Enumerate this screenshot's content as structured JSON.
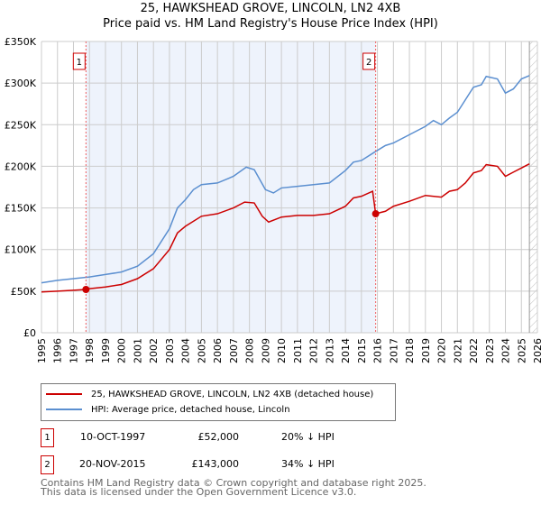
{
  "title": "25, HAWKSHEAD GROVE, LINCOLN, LN2 4XB",
  "subtitle": "Price paid vs. HM Land Registry's House Price Index (HPI)",
  "chart_data": {
    "type": "line",
    "title": "25, HAWKSHEAD GROVE, LINCOLN, LN2 4XB",
    "subtitle": "Price paid vs. HM Land Registry's House Price Index (HPI)",
    "xlim": [
      1995,
      2026
    ],
    "ylim": [
      0,
      350000
    ],
    "yticks": [
      {
        "v": 0,
        "label": "£0"
      },
      {
        "v": 50000,
        "label": "£50K"
      },
      {
        "v": 100000,
        "label": "£100K"
      },
      {
        "v": 150000,
        "label": "£150K"
      },
      {
        "v": 200000,
        "label": "£200K"
      },
      {
        "v": 250000,
        "label": "£250K"
      },
      {
        "v": 300000,
        "label": "£300K"
      },
      {
        "v": 350000,
        "label": "£350K"
      }
    ],
    "xticks": [
      "1995",
      "1996",
      "1997",
      "1998",
      "1999",
      "2000",
      "2001",
      "2002",
      "2003",
      "2004",
      "2005",
      "2006",
      "2007",
      "2008",
      "2009",
      "2010",
      "2011",
      "2012",
      "2013",
      "2014",
      "2015",
      "2016",
      "2017",
      "2018",
      "2019",
      "2020",
      "2021",
      "2022",
      "2023",
      "2024",
      "2025",
      "2026"
    ],
    "grid": true,
    "series": [
      {
        "name": "25, HAWKSHEAD GROVE, LINCOLN, LN2 4XB (detached house)",
        "color": "#cc0000",
        "x": [
          1995,
          1996,
          1997,
          1997.78,
          1998,
          1999,
          2000,
          2001,
          2002,
          2003,
          2003.5,
          2004,
          2005,
          2006,
          2007,
          2007.7,
          2008.3,
          2008.8,
          2009.2,
          2010,
          2011,
          2012,
          2013,
          2014,
          2014.5,
          2015,
          2015.7,
          2015.89,
          2016.5,
          2017,
          2018,
          2019,
          2020,
          2020.5,
          2021,
          2021.5,
          2022,
          2022.5,
          2022.8,
          2023.5,
          2024,
          2024.5,
          2025,
          2025.5
        ],
        "y": [
          49000,
          50000,
          51000,
          52000,
          53000,
          55000,
          58000,
          65000,
          77000,
          100000,
          120000,
          128000,
          140000,
          143000,
          150000,
          157000,
          156000,
          140000,
          133000,
          139000,
          141000,
          141000,
          143000,
          152000,
          162000,
          164000,
          170000,
          143000,
          146000,
          152000,
          158000,
          165000,
          163000,
          170000,
          172000,
          180000,
          192000,
          195000,
          202000,
          200000,
          188000,
          193000,
          198000,
          203000
        ]
      },
      {
        "name": "HPI: Average price, detached house, Lincoln",
        "color": "#5b8fd0",
        "x": [
          1995,
          1996,
          1997,
          1998,
          1999,
          2000,
          2001,
          2002,
          2003,
          2003.5,
          2004,
          2004.5,
          2005,
          2006,
          2007,
          2007.8,
          2008.3,
          2009,
          2009.5,
          2010,
          2011,
          2012,
          2013,
          2014,
          2014.5,
          2015,
          2015.9,
          2016.5,
          2017,
          2018,
          2019,
          2019.5,
          2020,
          2020.5,
          2021,
          2021.5,
          2022,
          2022.5,
          2022.8,
          2023.5,
          2024,
          2024.5,
          2025,
          2025.5
        ],
        "y": [
          60000,
          63000,
          65000,
          67000,
          70000,
          73000,
          80000,
          95000,
          125000,
          150000,
          160000,
          172000,
          178000,
          180000,
          188000,
          199000,
          196000,
          172000,
          168000,
          174000,
          176000,
          178000,
          180000,
          195000,
          205000,
          207000,
          218000,
          225000,
          228000,
          238000,
          248000,
          255000,
          250000,
          258000,
          265000,
          280000,
          295000,
          298000,
          308000,
          305000,
          288000,
          293000,
          305000,
          309000
        ]
      }
    ],
    "sales": [
      {
        "label": "1",
        "x": 1997.78,
        "y": 52000,
        "date": "10-OCT-1997",
        "price": "£52,000",
        "hpi": "20% ↓ HPI"
      },
      {
        "label": "2",
        "x": 2015.89,
        "y": 143000,
        "date": "20-NOV-2015",
        "price": "£143,000",
        "hpi": "34% ↓ HPI"
      }
    ],
    "shaded_range": [
      1997.78,
      2015.89
    ],
    "forecast_from": 2025.5
  },
  "legend": {
    "red": "25, HAWKSHEAD GROVE, LINCOLN, LN2 4XB (detached house)",
    "blue": "HPI: Average price, detached house, Lincoln"
  },
  "footer": {
    "line1": "Contains HM Land Registry data © Crown copyright and database right 2025.",
    "line2": "This data is licensed under the Open Government Licence v3.0."
  }
}
